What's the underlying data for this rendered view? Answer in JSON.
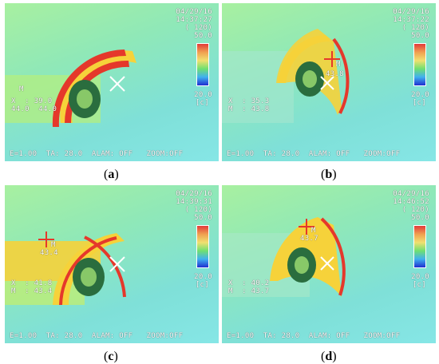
{
  "panels": [
    {
      "caption_letter": "a",
      "date": "04/29/16",
      "time": "14:37:27",
      "range": "( 120)",
      "scale_max": "50.0",
      "scale_min": "20.0",
      "unit": "[c]",
      "spot_label": "M",
      "read_x": "X  : 39.0",
      "read_m": "44.0  44.0",
      "point_value": "",
      "footer": "E=1.00  TA: 28.0  ALAM: OFF   ZOOM:OFF"
    },
    {
      "caption_letter": "b",
      "date": "04/29/16",
      "time": "14:37:22",
      "range": "( 120)",
      "scale_max": "50.0",
      "scale_min": "20.0",
      "unit": "[c]",
      "spot_label": "M",
      "read_x": "X  : 35.3",
      "read_m": "M  : 43.8",
      "point_value": "43.8",
      "footer": "E=1.00  TA: 28.0  ALAM: OFF   ZOOM:OFF"
    },
    {
      "caption_letter": "c",
      "date": "04/29/16",
      "time": "14:39:31",
      "range": "( 120)",
      "scale_max": "50.0",
      "scale_min": "20.0",
      "unit": "[c]",
      "spot_label": "M",
      "read_x": "X  : 41.8",
      "read_m": "M  : 43.4",
      "point_value": "43.4",
      "footer": "E=1.00  TA: 28.0  ALAM: OFF   ZOOM:OFF"
    },
    {
      "caption_letter": "d",
      "date": "04/29/16",
      "time": "14:46:52",
      "range": "( 120)",
      "scale_max": "50.0",
      "scale_min": "20.0",
      "unit": "[c]",
      "spot_label": "M",
      "read_x": "X  : 40.2",
      "read_m": "M  : 43.7",
      "point_value": "43.7",
      "footer": "E=1.00  TA: 28.0  ALAM: OFF   ZOOM:OFF"
    }
  ],
  "colors": {
    "hot": "#e5382b",
    "warm": "#f6d23a",
    "mid": "#86e89a",
    "cool": "#7fe0dc"
  }
}
